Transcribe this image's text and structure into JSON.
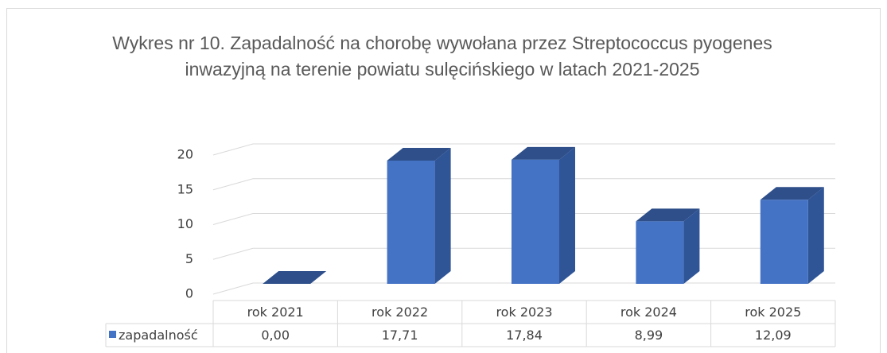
{
  "chart_data": {
    "type": "bar3d",
    "title": [
      "Wykres nr 10. Zapadalność na chorobę wywołana przez Streptococcus pyogenes",
      "inwazyjną na terenie powiatu sulęcińskiego w latach 2021-2025"
    ],
    "categories": [
      "rok 2021",
      "rok 2022",
      "rok 2023",
      "rok 2024",
      "rok 2025"
    ],
    "series": [
      {
        "name": "zapadalność",
        "color": "#4472c4",
        "values": [
          0,
          17.71,
          17.84,
          8.99,
          12.09
        ],
        "value_labels": [
          "0,00",
          "17,71",
          "17,84",
          "8,99",
          "12,09"
        ]
      }
    ],
    "ylim": [
      0,
      20
    ],
    "yticks": [
      0,
      5,
      10,
      15,
      20
    ],
    "grid": true,
    "data_table": true
  }
}
